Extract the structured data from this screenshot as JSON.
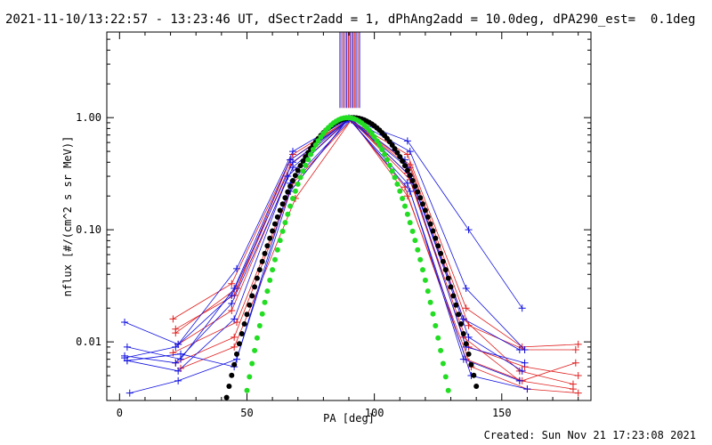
{
  "header": {
    "title": "2021-11-10/13:22:57 - 13:23:46 UT, dSectr2add = 1, dPhAng2add = 10.0deg, dPA290_est=  0.1deg"
  },
  "footer": {
    "created": "Created: Sun Nov 21 17:23:08 2021"
  },
  "chart_data": {
    "type": "line",
    "title": "2021-11-10/13:22:57 - 13:23:46 UT, dSectr2add = 1, dPhAng2add = 10.0deg, dPA290_est=  0.1deg",
    "xlabel": "PA [deg]",
    "ylabel": "nflux [#/(cm^2 s sr MeV)]",
    "xlim": [
      -5,
      185
    ],
    "ylim": [
      0.003,
      5.8
    ],
    "yscale": "log",
    "xticks": [
      0,
      50,
      100,
      150
    ],
    "xtick_labels": [
      "0",
      "50",
      "100",
      "150"
    ],
    "yticks": [
      0.01,
      0.1,
      1.0
    ],
    "ytick_labels": [
      "0.01",
      "0.10",
      "1.00"
    ],
    "grid": false,
    "colors": {
      "red": "#e02020",
      "blue": "#1010e0",
      "black": "#000000",
      "green": "#22dd22"
    },
    "series": [
      {
        "color": "red",
        "x": [
          21,
          44,
          68,
          90,
          113,
          136,
          158,
          180
        ],
        "y": [
          0.016,
          0.033,
          0.47,
          0.96,
          0.47,
          0.02,
          0.009,
          0.0095
        ]
      },
      {
        "color": "red",
        "x": [
          22,
          45,
          67,
          90,
          114,
          137,
          159,
          179
        ],
        "y": [
          0.013,
          0.026,
          0.38,
          0.97,
          0.38,
          0.014,
          0.0085,
          0.0085
        ]
      },
      {
        "color": "red",
        "x": [
          23,
          44,
          66,
          90,
          113,
          135,
          157,
          178
        ],
        "y": [
          0.0095,
          0.019,
          0.3,
          0.98,
          0.32,
          0.011,
          0.0045,
          0.0038
        ]
      },
      {
        "color": "red",
        "x": [
          21,
          46,
          68,
          91,
          114,
          137,
          159,
          180
        ],
        "y": [
          0.008,
          0.015,
          0.26,
          0.95,
          0.28,
          0.009,
          0.006,
          0.005
        ]
      },
      {
        "color": "red",
        "x": [
          22,
          45,
          67,
          90,
          112,
          136,
          158,
          179
        ],
        "y": [
          0.0065,
          0.011,
          0.22,
          0.99,
          0.24,
          0.007,
          0.0045,
          0.0065
        ]
      },
      {
        "color": "red",
        "x": [
          24,
          45,
          69,
          91,
          113,
          138,
          160,
          180
        ],
        "y": [
          0.0058,
          0.009,
          0.19,
          0.96,
          0.2,
          0.006,
          0.0038,
          0.0035
        ]
      },
      {
        "color": "red",
        "x": [
          22,
          46,
          67,
          90,
          114,
          135,
          157,
          178
        ],
        "y": [
          0.012,
          0.03,
          0.42,
          0.97,
          0.36,
          0.016,
          0.0055,
          0.0042
        ]
      },
      {
        "color": "blue",
        "x": [
          2,
          23,
          46,
          68,
          90,
          113,
          137,
          158
        ],
        "y": [
          0.015,
          0.0095,
          0.045,
          0.5,
          0.98,
          0.62,
          0.1,
          0.02
        ]
      },
      {
        "color": "blue",
        "x": [
          3,
          24,
          45,
          67,
          91,
          114,
          136,
          159
        ],
        "y": [
          0.009,
          0.007,
          0.03,
          0.42,
          0.97,
          0.5,
          0.03,
          0.0085
        ]
      },
      {
        "color": "blue",
        "x": [
          2,
          22,
          44,
          68,
          90,
          112,
          135,
          157
        ],
        "y": [
          0.0075,
          0.0065,
          0.022,
          0.36,
          0.99,
          0.42,
          0.016,
          0.0085
        ]
      },
      {
        "color": "blue",
        "x": [
          3,
          23,
          45,
          66,
          90,
          113,
          137,
          158
        ],
        "y": [
          0.0068,
          0.0055,
          0.016,
          0.3,
          0.96,
          0.36,
          0.011,
          0.0055
        ]
      },
      {
        "color": "blue",
        "x": [
          4,
          23,
          46,
          67,
          91,
          114,
          136,
          159
        ],
        "y": [
          0.0035,
          0.0045,
          0.007,
          0.26,
          0.98,
          0.3,
          0.009,
          0.0065
        ]
      },
      {
        "color": "blue",
        "x": [
          2,
          22,
          44,
          68,
          90,
          113,
          135,
          157
        ],
        "y": [
          0.0072,
          0.009,
          0.026,
          0.4,
          0.97,
          0.26,
          0.007,
          0.0045
        ]
      },
      {
        "color": "blue",
        "x": [
          3,
          24,
          45,
          67,
          90,
          114,
          138,
          160
        ],
        "y": [
          0.0068,
          0.0078,
          0.006,
          0.22,
          0.99,
          0.22,
          0.005,
          0.0038
        ]
      }
    ],
    "fits": [
      {
        "color": "black",
        "x_range": [
          20,
          140
        ],
        "center": 91.5,
        "sigma": 14.6,
        "peak": 1.0
      },
      {
        "color": "green",
        "x_range": [
          40,
          136
        ],
        "center": 89.5,
        "sigma": 11.8,
        "peak": 1.0
      }
    ],
    "vlines": {
      "color_pattern": [
        "blue",
        "red"
      ],
      "x": [
        86.5,
        87.2,
        87.9,
        88.6,
        89.2,
        89.8,
        90.4,
        91.0,
        91.6,
        92.2,
        92.8,
        93.5,
        94.2
      ],
      "y_range": [
        1.22,
        5.8
      ]
    }
  }
}
